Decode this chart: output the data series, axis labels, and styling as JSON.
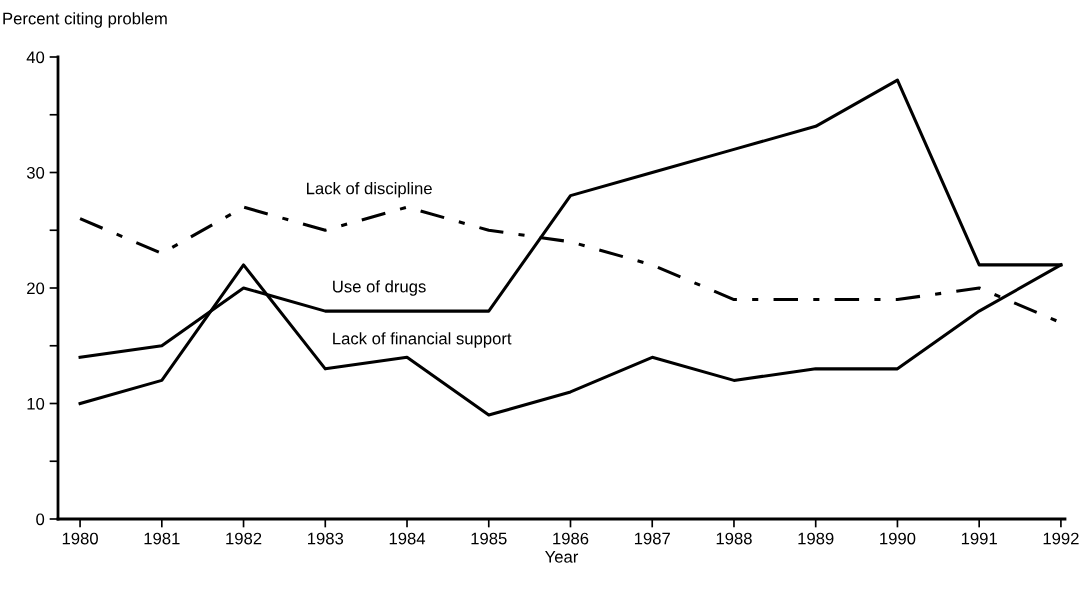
{
  "chart_data": {
    "type": "line",
    "ylabel": "Percent citing problem",
    "xlabel": "Year",
    "x": [
      1980,
      1981,
      1982,
      1983,
      1984,
      1985,
      1986,
      1987,
      1988,
      1989,
      1990,
      1991,
      1992
    ],
    "series": [
      {
        "name": "Lack of discipline",
        "color": "#000000",
        "line_style": "dashdot",
        "values": [
          26,
          23,
          27,
          25,
          27,
          25,
          24,
          22,
          19,
          19,
          19,
          20,
          17
        ]
      },
      {
        "name": "Use of drugs",
        "color": "#000000",
        "line_style": "solid",
        "values": [
          14,
          15,
          20,
          18,
          18,
          18,
          28,
          30,
          32,
          34,
          38,
          22,
          22
        ]
      },
      {
        "name": "Lack of financial support",
        "color": "#000000",
        "line_style": "solid",
        "values": [
          10,
          12,
          22,
          13,
          14,
          9,
          11,
          14,
          12,
          13,
          13,
          18,
          22
        ]
      }
    ],
    "xlim": [
      1979.73,
      1992.05
    ],
    "xticks": [
      1980,
      1981,
      1982,
      1983,
      1984,
      1985,
      1986,
      1987,
      1988,
      1989,
      1990,
      1991,
      1992
    ],
    "ylim": [
      0,
      40
    ],
    "yticks": [
      0,
      {
        "value": 5,
        "label": null
      },
      10,
      {
        "value": 15,
        "label": null
      },
      20,
      {
        "value": 25,
        "label": null
      },
      30,
      {
        "value": 35,
        "label": null
      },
      40
    ],
    "grid": false,
    "legend": false,
    "marker": "none"
  }
}
